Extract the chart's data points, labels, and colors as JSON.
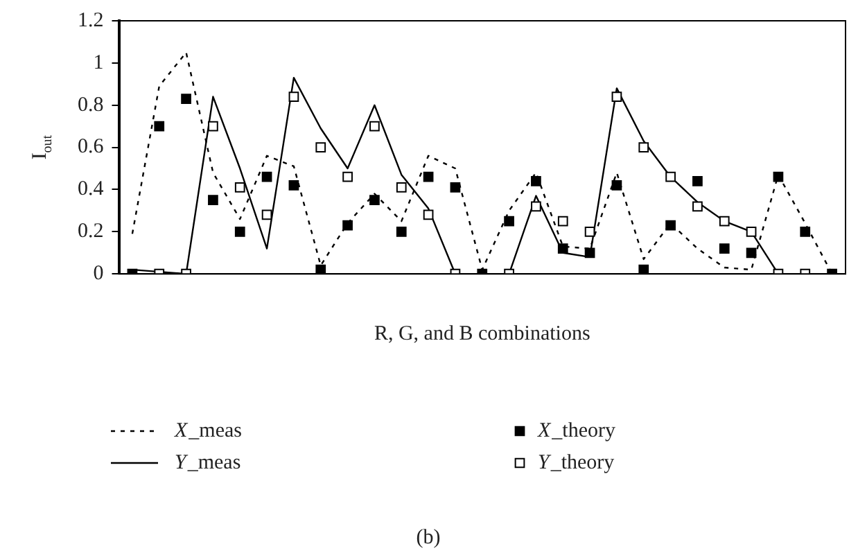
{
  "chart_data": {
    "type": "line",
    "xlabel": "R, G, and B combinations",
    "ylabel": "I$_{out}$",
    "categories": [
      null,
      null,
      null,
      null,
      null,
      null,
      null,
      null,
      null,
      null,
      null,
      null,
      null,
      null,
      null,
      null,
      null,
      null,
      null,
      null,
      null,
      null,
      null,
      null,
      null,
      null,
      null
    ],
    "ylim": [
      0,
      1.2
    ],
    "yticks": [
      0,
      0.2,
      0.4,
      0.6,
      0.8,
      1,
      1.2
    ],
    "grid": false,
    "legend": "bottom",
    "annotations": [
      "(b)"
    ],
    "series": [
      {
        "name": "X_meas",
        "line_style": "dashed",
        "marker": "none",
        "color": "#000000",
        "values": [
          0.19,
          0.89,
          1.05,
          0.48,
          0.26,
          0.56,
          0.51,
          0.04,
          0.24,
          0.38,
          0.25,
          0.56,
          0.5,
          0.02,
          0.3,
          0.48,
          0.13,
          0.12,
          0.48,
          0.07,
          0.24,
          0.12,
          0.03,
          0.02,
          0.47,
          0.24,
          0
        ]
      },
      {
        "name": "Y_meas",
        "line_style": "solid",
        "marker": "none",
        "color": "#000000",
        "values": [
          0.02,
          0.01,
          0,
          0.84,
          0.5,
          0.12,
          0.93,
          0.69,
          0.5,
          0.8,
          0.47,
          0.31,
          0,
          0,
          0,
          0.37,
          0.1,
          0.08,
          0.88,
          0.63,
          0.46,
          0.34,
          0.25,
          0.2,
          0,
          0,
          0
        ]
      },
      {
        "name": "X_theory",
        "type": "scatter",
        "marker": "square",
        "color": "#000000",
        "values": [
          0,
          0.7,
          0.83,
          0.35,
          0.2,
          0.46,
          0.42,
          0.02,
          0.23,
          0.35,
          0.2,
          0.46,
          0.41,
          0,
          0.25,
          0.44,
          0.12,
          0.1,
          0.42,
          0.02,
          0.23,
          0.44,
          0.12,
          0.1,
          0.46,
          0.2,
          0
        ]
      },
      {
        "name": "Y_theory",
        "type": "scatter",
        "marker": "square",
        "color": "#ffffff",
        "values": [
          null,
          0,
          0,
          0.7,
          0.41,
          0.28,
          0.84,
          0.6,
          0.46,
          0.7,
          0.41,
          0.28,
          0,
          null,
          0,
          0.32,
          0.25,
          0.2,
          0.84,
          0.6,
          0.46,
          0.32,
          0.25,
          0.2,
          0,
          0,
          null
        ]
      }
    ]
  }
}
